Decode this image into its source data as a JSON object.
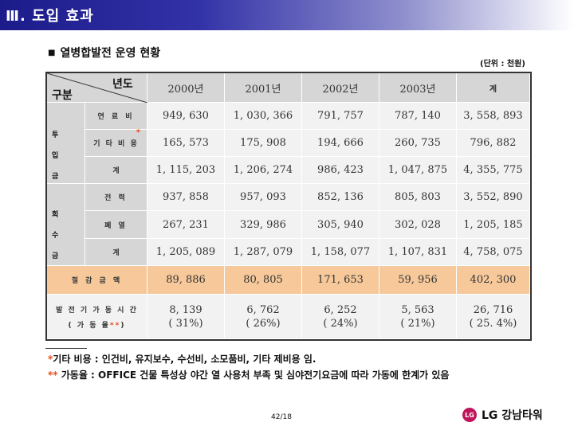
{
  "header": {
    "title": "Ⅲ. 도입 효과"
  },
  "section": {
    "bullet": "■",
    "title": "열병합발전 운영 현황",
    "unit": "(단위 : 천원)"
  },
  "table": {
    "corner": {
      "top": "년도",
      "bottom": "구분"
    },
    "columns": [
      "2000년",
      "2001년",
      "2002년",
      "2003년",
      "계"
    ],
    "groups": {
      "input": "투 입 금 액",
      "recovery": "회 수 금 액"
    },
    "rows": [
      {
        "label": "연 료 비",
        "values": [
          "949, 630",
          "1, 030, 366",
          "791, 757",
          "787, 140",
          "3, 558, 893"
        ]
      },
      {
        "label": "기 타 비 용",
        "mark": "*",
        "values": [
          "165, 573",
          "175, 908",
          "194, 666",
          "260, 735",
          "796, 882"
        ]
      },
      {
        "label": "계",
        "values": [
          "1, 115, 203",
          "1, 206, 274",
          "986, 423",
          "1, 047, 875",
          "4, 355, 775"
        ]
      },
      {
        "label": "전 력",
        "values": [
          "937, 858",
          "957, 093",
          "852, 136",
          "805, 803",
          "3, 552, 890"
        ]
      },
      {
        "label": "폐 열",
        "values": [
          "267, 231",
          "329, 986",
          "305, 940",
          "302, 028",
          "1, 205, 185"
        ]
      },
      {
        "label": "계",
        "values": [
          "1, 205, 089",
          "1, 287, 079",
          "1, 158, 077",
          "1, 107, 831",
          "4, 758, 075"
        ]
      },
      {
        "label": "절 감 금 액",
        "values": [
          "89, 886",
          "80, 805",
          "171, 653",
          "59, 956",
          "402, 300"
        ]
      },
      {
        "label": "발 전 기 가 동 시 간",
        "sublabel": "( 가 동 율",
        "mark": "**",
        "close": ")",
        "values": [
          "8, 139",
          "6, 762",
          "6, 252",
          "5, 563",
          "26, 716"
        ],
        "rates": [
          "( 31%)",
          "( 26%)",
          "( 24%)",
          "( 21%)",
          "( 25. 4%)"
        ]
      }
    ]
  },
  "footnotes": [
    {
      "mark": "*",
      "text": "기타 비용 : 인건비, 유지보수, 수선비, 소모품비, 기타 제비용 임."
    },
    {
      "mark": "**",
      "text": " 가동율 : OFFICE 건물 특성상 야간 열 사용처 부족 및 심야전기요금에 따라 가동에 한계가 있음"
    }
  ],
  "footer": {
    "page": "42/18",
    "logo_mark": "LG",
    "company": "LG 강남타워"
  },
  "colors": {
    "header": "#1b1b8a",
    "savings_row": "#f6c89a",
    "label_col": "#d6d6d6",
    "value_cell": "#f2f2f2",
    "mark": "#e0501a"
  }
}
